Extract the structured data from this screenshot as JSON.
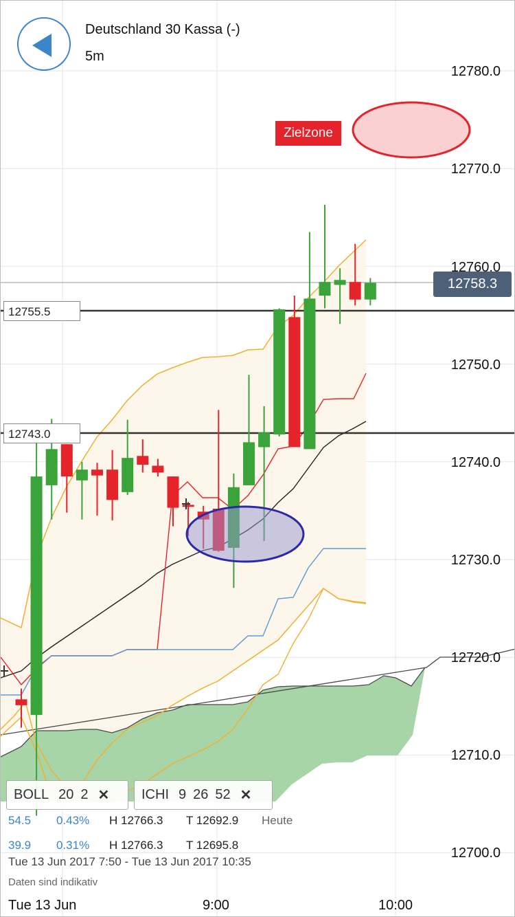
{
  "header": {
    "title": "Deutschland 30 Kassa (-)",
    "timeframe": "5m"
  },
  "price_axis": {
    "labels": [
      "12780.0",
      "12770.0",
      "12760.0",
      "12750.0",
      "12740.0",
      "12730.0",
      "12720.0",
      "12710.0",
      "12700.0"
    ],
    "current_price": "12758.3"
  },
  "levels": {
    "upper": "12755.5",
    "lower": "12743.0"
  },
  "annotations": {
    "target_zone": "Zielzone"
  },
  "indicators": [
    {
      "name": "BOLL",
      "params": [
        "20",
        "2"
      ],
      "remove_icon": "close-icon"
    },
    {
      "name": "ICHI",
      "params": [
        "9",
        "26",
        "52"
      ],
      "remove_icon": "close-icon"
    }
  ],
  "stats": [
    {
      "change": "54.5",
      "pct": "0.43%",
      "high": "H 12766.3",
      "low": "T 12692.9",
      "period": "Heute"
    },
    {
      "change": "39.9",
      "pct": "0.31%",
      "high": "H 12766.3",
      "low": "T 12695.8",
      "period": ""
    }
  ],
  "range_text": "Tue 13 Jun 2017 7:50 - Tue 13 Jun 2017 10:35",
  "disclaimer": "Daten sind indikativ",
  "time_axis": [
    "Tue 13 Jun",
    "9:00",
    "10:00"
  ],
  "colors": {
    "up": "#3aa33a",
    "down": "#e5232b",
    "accent": "#3a86c8",
    "current_price_bg": "#4e6078",
    "boll_band": "#f0b030",
    "boll_mid": "#222222",
    "ichi_tenkan": "#e5232b",
    "ichi_kijun": "#5b9bd5",
    "ichi_chikou": "#f0b030",
    "cloud": "#a8d5a8"
  },
  "chart_data": {
    "type": "candlestick",
    "interval": "5m",
    "y_range": [
      12698,
      12786
    ],
    "candles": [
      {
        "o": 12715.7,
        "h": 12716.8,
        "l": 12712.8,
        "c": 12715.1
      },
      {
        "o": 12714.1,
        "h": 12743.8,
        "l": 12703.8,
        "c": 12738.5
      },
      {
        "o": 12737.6,
        "h": 12744.4,
        "l": 12734.1,
        "c": 12741.3
      },
      {
        "o": 12741.8,
        "h": 12741.8,
        "l": 12734.8,
        "c": 12738.5
      },
      {
        "o": 12738.1,
        "h": 12740.0,
        "l": 12734.1,
        "c": 12739.2
      },
      {
        "o": 12739.2,
        "h": 12739.9,
        "l": 12734.5,
        "c": 12738.6
      },
      {
        "o": 12739.2,
        "h": 12741.2,
        "l": 12734.0,
        "c": 12736.1
      },
      {
        "o": 12736.9,
        "h": 12744.3,
        "l": 12736.6,
        "c": 12740.4
      },
      {
        "o": 12740.6,
        "h": 12742.3,
        "l": 12738.9,
        "c": 12739.7
      },
      {
        "o": 12739.6,
        "h": 12740.3,
        "l": 12738.5,
        "c": 12738.9
      },
      {
        "o": 12738.5,
        "h": 12738.5,
        "l": 12733.4,
        "c": 12735.3
      },
      {
        "o": 12735.6,
        "h": 12735.9,
        "l": 12732.4,
        "c": 12735.4
      },
      {
        "o": 12734.9,
        "h": 12735.5,
        "l": 12731.1,
        "c": 12734.1
      },
      {
        "o": 12735.2,
        "h": 12745.3,
        "l": 12730.8,
        "c": 12730.9
      },
      {
        "o": 12731.2,
        "h": 12738.8,
        "l": 12727.1,
        "c": 12737.4
      },
      {
        "o": 12737.6,
        "h": 12748.9,
        "l": 12737.6,
        "c": 12742.0
      },
      {
        "o": 12741.5,
        "h": 12745.7,
        "l": 12731.9,
        "c": 12743.0
      },
      {
        "o": 12742.8,
        "h": 12755.7,
        "l": 12742.6,
        "c": 12755.6
      },
      {
        "o": 12754.8,
        "h": 12757.0,
        "l": 12741.9,
        "c": 12741.5
      },
      {
        "o": 12741.3,
        "h": 12763.5,
        "l": 12741.3,
        "c": 12756.7
      },
      {
        "o": 12757.0,
        "h": 12766.3,
        "l": 12755.7,
        "c": 12758.4
      },
      {
        "o": 12758.1,
        "h": 12759.8,
        "l": 12754.1,
        "c": 12758.6
      },
      {
        "o": 12758.4,
        "h": 12762.3,
        "l": 12756.0,
        "c": 12756.6
      },
      {
        "o": 12756.6,
        "h": 12758.8,
        "l": 12756.0,
        "c": 12758.3
      }
    ],
    "x_ticks": [
      "Tue 13 Jun",
      "9:00",
      "10:00"
    ],
    "y_ticks": [
      12780,
      12770,
      12760,
      12750,
      12740,
      12730,
      12720,
      12710,
      12700
    ]
  }
}
